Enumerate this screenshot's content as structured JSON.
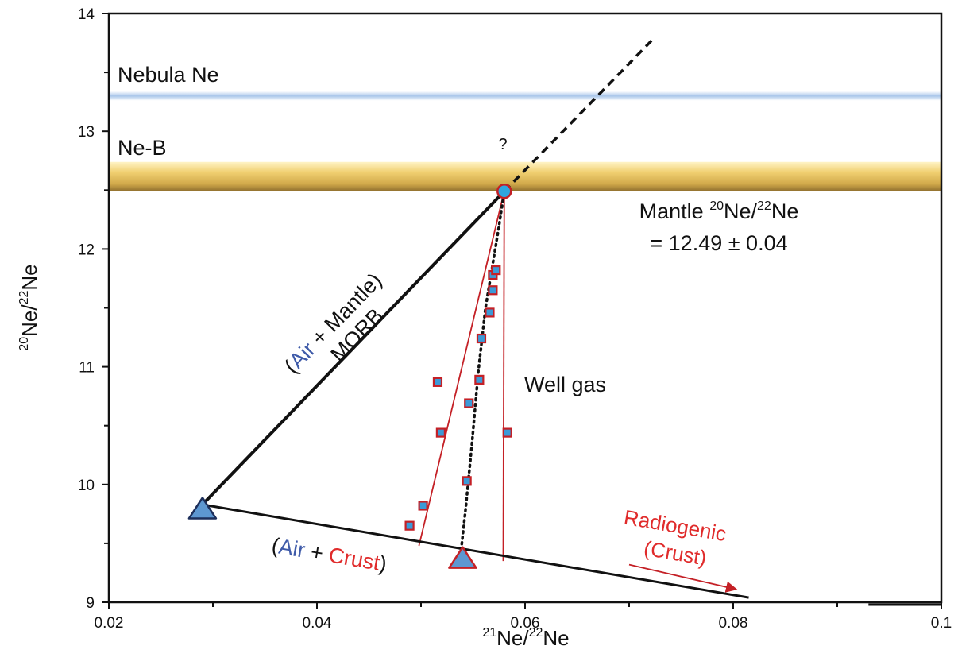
{
  "chart_data": {
    "type": "scatter",
    "xlabel": {
      "sup": "21",
      "main": "Ne/",
      "sup2": "22",
      "end": "Ne"
    },
    "ylabel": {
      "sup": "20",
      "main": "Ne/",
      "sup2": "22",
      "end": "Ne"
    },
    "xlim": [
      0.02,
      0.1
    ],
    "ylim": [
      9,
      14
    ],
    "xticks": [
      0.02,
      0.04,
      0.06,
      0.08,
      0.1
    ],
    "xtick_labels": [
      "0.02",
      "0.04",
      "0.06",
      "0.08",
      "0.1"
    ],
    "yticks": [
      9,
      10,
      11,
      12,
      13,
      14
    ],
    "ytick_labels": [
      "9",
      "10",
      "11",
      "12",
      "13",
      "14"
    ],
    "bands": [
      {
        "label": "Nebula Ne",
        "y_low": 13.26,
        "y_high": 13.34,
        "color": "#b8cfec"
      },
      {
        "label": "Ne-B",
        "y_low": 12.49,
        "y_high": 12.74,
        "color": "#e8c46a"
      }
    ],
    "endmembers": {
      "air": {
        "x": 0.029,
        "y": 9.8
      },
      "mantle": {
        "x": 0.058,
        "y": 12.49
      },
      "crust_point": {
        "x": 0.054,
        "y": 9.38
      }
    },
    "lines": {
      "mixing_air_mantle": [
        [
          0.029,
          9.83
        ],
        [
          0.058,
          12.49
        ]
      ],
      "mixing_air_crust": [
        [
          0.029,
          9.83
        ],
        [
          0.0815,
          9.04
        ]
      ],
      "extension": [
        [
          0.058,
          12.49
        ],
        [
          0.0725,
          13.8
        ]
      ],
      "well_gas_trend": [
        [
          0.0538,
          9.4
        ],
        [
          0.0543,
          9.8
        ],
        [
          0.0549,
          10.35
        ],
        [
          0.0555,
          10.95
        ],
        [
          0.0562,
          11.5
        ],
        [
          0.0575,
          12.2
        ],
        [
          0.058,
          12.49
        ]
      ],
      "envelope_left": [
        [
          0.0498,
          9.48
        ],
        [
          0.058,
          12.49
        ]
      ],
      "envelope_right": [
        [
          0.0579,
          9.35
        ],
        [
          0.058,
          12.49
        ]
      ],
      "radiogenic_arrow": [
        [
          0.07,
          9.32
        ],
        [
          0.0803,
          9.11
        ]
      ],
      "edge_segment": [
        [
          0.093,
          8.98
        ],
        [
          0.1,
          8.98
        ]
      ]
    },
    "points": [
      {
        "x": 0.0489,
        "y": 9.65
      },
      {
        "x": 0.0502,
        "y": 9.82
      },
      {
        "x": 0.0544,
        "y": 10.03
      },
      {
        "x": 0.0519,
        "y": 10.44
      },
      {
        "x": 0.0583,
        "y": 10.44
      },
      {
        "x": 0.0546,
        "y": 10.69
      },
      {
        "x": 0.0516,
        "y": 10.87
      },
      {
        "x": 0.0556,
        "y": 10.89
      },
      {
        "x": 0.0558,
        "y": 11.24
      },
      {
        "x": 0.0566,
        "y": 11.46
      },
      {
        "x": 0.0569,
        "y": 11.65
      },
      {
        "x": 0.0569,
        "y": 11.78
      },
      {
        "x": 0.0572,
        "y": 11.82
      }
    ],
    "annotations": {
      "question": "?",
      "mantle_label_prefix": "Mantle ",
      "mantle_sup1": "20",
      "mantle_mid": "Ne/",
      "mantle_sup2": "22",
      "mantle_end": "Ne",
      "mantle_value": "= 12.49 ± 0.04",
      "morb": "MORB",
      "air_mantle": {
        "open": "(",
        "air": "Air",
        "plus": " + Mantle)"
      },
      "air_crust": {
        "open": "(",
        "air": "Air",
        "plus": " + ",
        "crust": "Crust",
        "close": ")"
      },
      "well_gas": "Well gas",
      "radiogenic": "Radiogenic",
      "radiogenic_crust": "(Crust)"
    },
    "colors": {
      "air_text": "#3f5ba9",
      "crust_text": "#e02b2b",
      "red_line": "#c42026",
      "marker_fill": "#3b9ad8",
      "marker_stroke": "#c42026",
      "triangle_fill": "#5d97d1"
    }
  }
}
